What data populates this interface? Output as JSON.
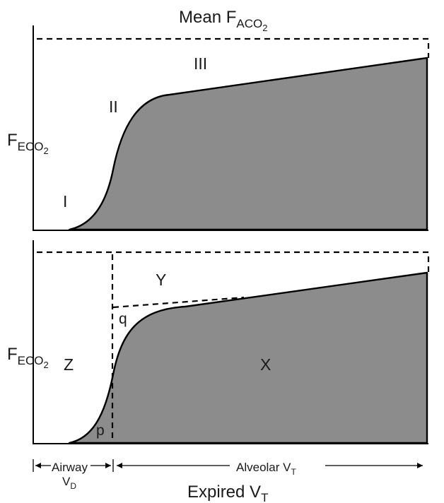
{
  "top_panel": {
    "title": {
      "main": "Mean F",
      "sub": "ACO",
      "subsub": "2"
    },
    "ylabel": {
      "main": "F",
      "sub": "ECO",
      "subsub": "2"
    },
    "phase_labels": {
      "phase1": "I",
      "phase2": "II",
      "phase3": "III"
    }
  },
  "bottom_panel": {
    "ylabel": {
      "main": "F",
      "sub": "ECO",
      "subsub": "2"
    },
    "region_labels": {
      "x": "X",
      "y": "Y",
      "z": "Z",
      "p": "p",
      "q": "q"
    }
  },
  "axis": {
    "airway_label": {
      "line1": "Airway",
      "line2_main": "V",
      "line2_sub": "D"
    },
    "alveolar_label": {
      "main": "Alveolar V",
      "sub": "T"
    },
    "xlabel": {
      "main": "Expired V",
      "sub": "T"
    }
  },
  "colors": {
    "fill": "#8c8c8c",
    "stroke": "#000000",
    "background": "#ffffff"
  }
}
